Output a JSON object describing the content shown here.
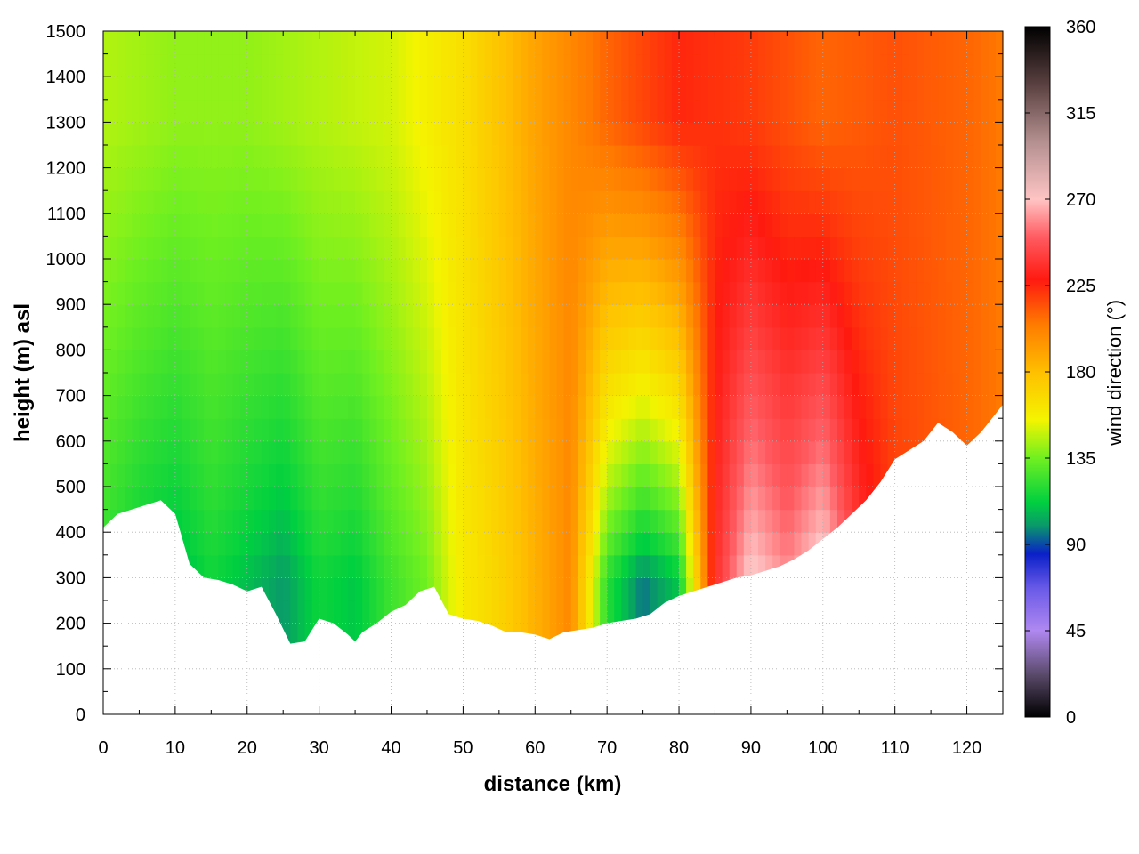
{
  "chart_data": {
    "type": "heatmap",
    "title": "",
    "xlabel": "distance (km)",
    "ylabel": "height (m) asl",
    "colorbar_label": "wind direction (°)",
    "xlim": [
      0,
      125
    ],
    "ylim": [
      0,
      1500
    ],
    "zlim": [
      0,
      360
    ],
    "x_ticks": [
      0,
      10,
      20,
      30,
      40,
      50,
      60,
      70,
      80,
      90,
      100,
      110,
      120
    ],
    "y_ticks": [
      0,
      100,
      200,
      300,
      400,
      500,
      600,
      700,
      800,
      900,
      1000,
      1100,
      1200,
      1300,
      1400,
      1500
    ],
    "z_ticks": [
      0,
      45,
      90,
      135,
      180,
      225,
      270,
      315,
      360
    ],
    "grid": true,
    "colormap": [
      {
        "v": 0,
        "color": "#000000"
      },
      {
        "v": 22,
        "color": "#5a4a6a"
      },
      {
        "v": 45,
        "color": "#b088f0"
      },
      {
        "v": 67,
        "color": "#6a5ae8"
      },
      {
        "v": 85,
        "color": "#0a20c8"
      },
      {
        "v": 100,
        "color": "#0a9a6a"
      },
      {
        "v": 112,
        "color": "#00d040"
      },
      {
        "v": 135,
        "color": "#70f020"
      },
      {
        "v": 155,
        "color": "#f4f400"
      },
      {
        "v": 180,
        "color": "#ffbf00"
      },
      {
        "v": 205,
        "color": "#ff7a00"
      },
      {
        "v": 228,
        "color": "#ff1a10"
      },
      {
        "v": 250,
        "color": "#ff5a60"
      },
      {
        "v": 270,
        "color": "#ffc4c4"
      },
      {
        "v": 300,
        "color": "#b49090"
      },
      {
        "v": 330,
        "color": "#5a4040"
      },
      {
        "v": 360,
        "color": "#000000"
      }
    ],
    "terrain": {
      "x": [
        0,
        2,
        4,
        6,
        8,
        10,
        12,
        14,
        16,
        18,
        20,
        22,
        24,
        26,
        28,
        30,
        32,
        34,
        35,
        36,
        38,
        40,
        42,
        44,
        46,
        48,
        50,
        52,
        54,
        56,
        58,
        60,
        62,
        64,
        66,
        68,
        70,
        72,
        74,
        76,
        78,
        80,
        82,
        84,
        86,
        88,
        90,
        92,
        94,
        96,
        98,
        100,
        102,
        104,
        106,
        108,
        110,
        112,
        114,
        116,
        118,
        120,
        122,
        124,
        125
      ],
      "height_m": [
        410,
        440,
        450,
        460,
        470,
        440,
        330,
        300,
        295,
        285,
        270,
        280,
        220,
        155,
        160,
        210,
        200,
        175,
        160,
        180,
        200,
        225,
        240,
        270,
        280,
        220,
        210,
        205,
        195,
        180,
        180,
        175,
        165,
        180,
        185,
        190,
        200,
        205,
        210,
        220,
        245,
        260,
        270,
        280,
        290,
        300,
        305,
        315,
        325,
        340,
        360,
        385,
        410,
        440,
        470,
        510,
        560,
        580,
        600,
        640,
        620,
        590,
        620,
        660,
        680
      ]
    },
    "surface_wind_direction_deg": {
      "x": [
        0,
        5,
        10,
        15,
        20,
        25,
        30,
        35,
        40,
        45,
        50,
        55,
        60,
        65,
        70,
        75,
        80,
        85,
        90,
        95,
        100,
        105,
        110,
        115,
        120,
        125
      ],
      "values": [
        120,
        110,
        105,
        115,
        108,
        100,
        115,
        110,
        125,
        135,
        160,
        170,
        185,
        200,
        120,
        95,
        110,
        235,
        275,
        260,
        280,
        240,
        220,
        215,
        210,
        205
      ]
    },
    "upper_wind_direction_deg": {
      "x": [
        0,
        10,
        20,
        30,
        40,
        50,
        60,
        70,
        80,
        90,
        100,
        110,
        120,
        125
      ],
      "values": [
        145,
        140,
        140,
        145,
        150,
        165,
        190,
        210,
        225,
        220,
        210,
        215,
        210,
        205
      ]
    }
  }
}
